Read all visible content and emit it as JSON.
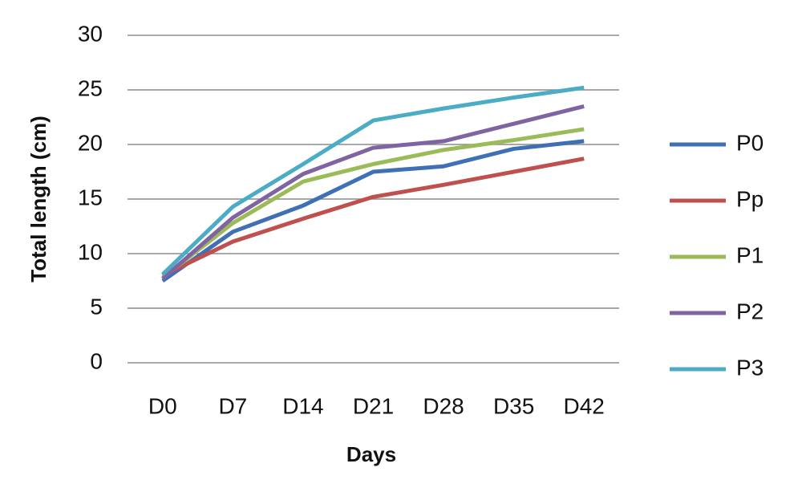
{
  "chart_data": {
    "type": "line",
    "x_label": "Days",
    "y_label": "Total length (cm)",
    "categories": [
      "D0",
      "D7",
      "D14",
      "D21",
      "D28",
      "D35",
      "D42"
    ],
    "series": [
      {
        "name": "P0",
        "color": "#3f6fb5",
        "values": [
          7.5,
          12,
          14.4,
          17.5,
          18,
          19.6,
          20.3
        ]
      },
      {
        "name": "Pp",
        "color": "#c0504d",
        "values": [
          8,
          11.1,
          13.2,
          15.2,
          16.3,
          17.5,
          18.7
        ]
      },
      {
        "name": "P1",
        "color": "#9bbb59",
        "values": [
          7.8,
          12.8,
          16.6,
          18.2,
          19.5,
          20.4,
          21.4
        ]
      },
      {
        "name": "P2",
        "color": "#8064a2",
        "values": [
          7.7,
          13.3,
          17.3,
          19.7,
          20.3,
          21.9,
          23.5
        ]
      },
      {
        "name": "P3",
        "color": "#4bacc6",
        "values": [
          8.1,
          14.3,
          18.2,
          22.2,
          23.3,
          24.3,
          25.2
        ]
      }
    ],
    "ylim": [
      0,
      30
    ],
    "yticks": [
      0,
      5,
      10,
      15,
      20,
      25,
      30
    ],
    "grid": true,
    "legend": "right"
  }
}
